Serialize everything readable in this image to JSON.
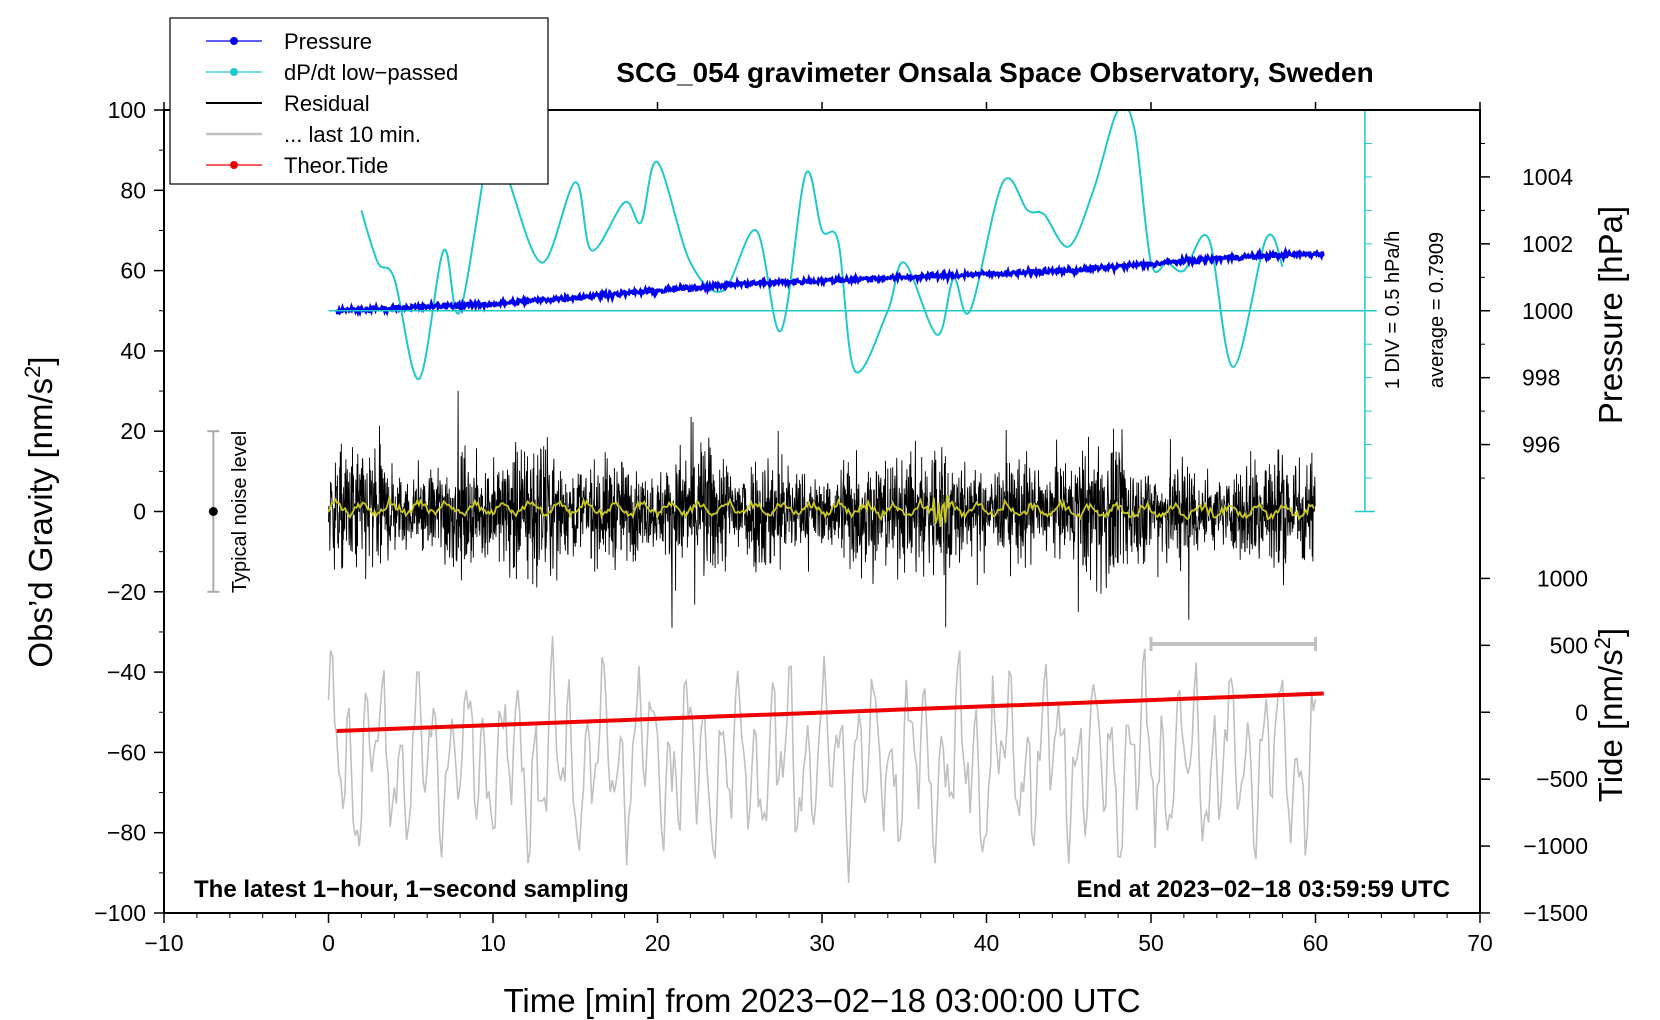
{
  "chart_data": {
    "type": "line",
    "title": "SCG_054 gravimeter Onsala Space Observatory, Sweden",
    "xlabel": "Time [min] from 2023−02−18 03:00:00 UTC",
    "ylabel_left": "Obs’d Gravity [nm/s",
    "ylabel_left_sup": "2",
    "ylabel_left_tail": "]",
    "ylabel_right_pressure": "Pressure [hPa]",
    "ylabel_right_tide": "Tide [nm/s",
    "ylabel_right_tide_sup": "2",
    "ylabel_right_tide_tail": "]",
    "xlim": [
      -10,
      70
    ],
    "ylim": [
      -100,
      100
    ],
    "x_ticks": [
      -10,
      0,
      10,
      20,
      30,
      40,
      50,
      60,
      70
    ],
    "x_tick_labels": [
      "−10",
      "0",
      "10",
      "20",
      "30",
      "40",
      "50",
      "60",
      "70"
    ],
    "y_ticks": [
      -100,
      -80,
      -60,
      -40,
      -20,
      0,
      20,
      40,
      60,
      80,
      100
    ],
    "y_tick_labels": [
      "−100",
      "−80",
      "−60",
      "−40",
      "−20",
      "0",
      "20",
      "40",
      "60",
      "80",
      "100"
    ],
    "pressure_axis": {
      "ticks": [
        996,
        998,
        1000,
        1002,
        1004
      ],
      "tick_labels": [
        "996",
        "998",
        "1000",
        "1002",
        "1004"
      ],
      "gravity_at_1000hpa": 50,
      "gravity_per_hpa": 8.333
    },
    "tide_axis": {
      "ticks": [
        -1500,
        -1000,
        -500,
        0,
        500,
        1000
      ],
      "tick_labels": [
        "−1500",
        "−1000",
        "−500",
        "0",
        "500",
        "1000"
      ],
      "gravity_at_0": -50,
      "gravity_per_unit": 0.03333
    },
    "legend": [
      {
        "name": "Pressure",
        "color": "#0000ee",
        "marker": true
      },
      {
        "name": "dP/dt low−passed",
        "color": "#20c8c8",
        "marker": true
      },
      {
        "name": "Residual",
        "color": "#000000",
        "marker": false
      },
      {
        "name": "... last 10 min.",
        "color": "#c0c0c0",
        "marker": false
      },
      {
        "name": "Theor.Tide",
        "color": "#ee0000",
        "marker": true
      }
    ],
    "series": [
      {
        "name": "Pressure",
        "units": "hPa",
        "x": [
          0.5,
          5,
          10,
          15,
          20,
          25,
          30,
          35,
          40,
          45,
          50,
          55,
          60
        ],
        "values": [
          1000.0,
          1000.1,
          1000.2,
          1000.4,
          1000.6,
          1000.8,
          1000.9,
          1001.0,
          1001.1,
          1001.2,
          1001.4,
          1001.6,
          1001.7
        ],
        "color": "#0000ee"
      },
      {
        "name": "dP/dt low−passed",
        "units": "gravity axis",
        "x": [
          2,
          3,
          4,
          5.5,
          7,
          8,
          10,
          11,
          13,
          15,
          16,
          18,
          19,
          20,
          22,
          24,
          26,
          27.5,
          29,
          30,
          31,
          32,
          34,
          35,
          37,
          38,
          39,
          41,
          42.5,
          43.5,
          45,
          46.5,
          48,
          49,
          50,
          51,
          52,
          53.5,
          55,
          57,
          58
        ],
        "values": [
          75,
          62,
          58,
          33,
          65,
          50,
          95,
          82,
          62,
          82,
          65,
          77,
          72,
          87,
          62,
          55,
          70,
          45,
          84,
          70,
          67,
          35,
          50,
          62,
          44,
          58,
          50,
          82,
          75,
          74,
          66,
          80,
          100,
          95,
          62,
          62,
          60,
          68,
          36,
          68,
          61
        ],
        "color": "#20c8c8"
      },
      {
        "name": "Residual",
        "units": "nm/s2",
        "x": [
          0,
          60
        ],
        "envelope": [
          -31,
          35
        ],
        "color": "#000000"
      },
      {
        "name": "Residual smoothed",
        "units": "nm/s2",
        "x": [
          0,
          60
        ],
        "values": [
          1,
          0
        ],
        "color": "#c8c820"
      },
      {
        "name": "... last 10 min.",
        "units": "gravity axis",
        "x": [
          0,
          60
        ],
        "envelope": [
          -92,
          -37
        ],
        "color": "#c0c0c0"
      },
      {
        "name": "Theor.Tide",
        "units": "nm/s2",
        "x": [
          0.5,
          60.5
        ],
        "values": [
          -140,
          140
        ],
        "color": "#ee0000"
      }
    ],
    "pressure_scale_bar": {
      "label_div": "1 DIV = 0.5 hPa/h",
      "label_avg": "average = 0.7909",
      "x": 63,
      "y_range": [
        0,
        100
      ],
      "baseline_y": 50
    },
    "noise_bar": {
      "label": "Typical noise level",
      "x": -7,
      "y_range": [
        -20,
        20
      ]
    },
    "last10_bar": {
      "x_range": [
        50,
        60
      ],
      "y": -33
    },
    "annotations": {
      "bottom_left": "The latest 1−hour, 1−second sampling",
      "bottom_right": "End at 2023−02−18 03:59:59 UTC"
    }
  }
}
